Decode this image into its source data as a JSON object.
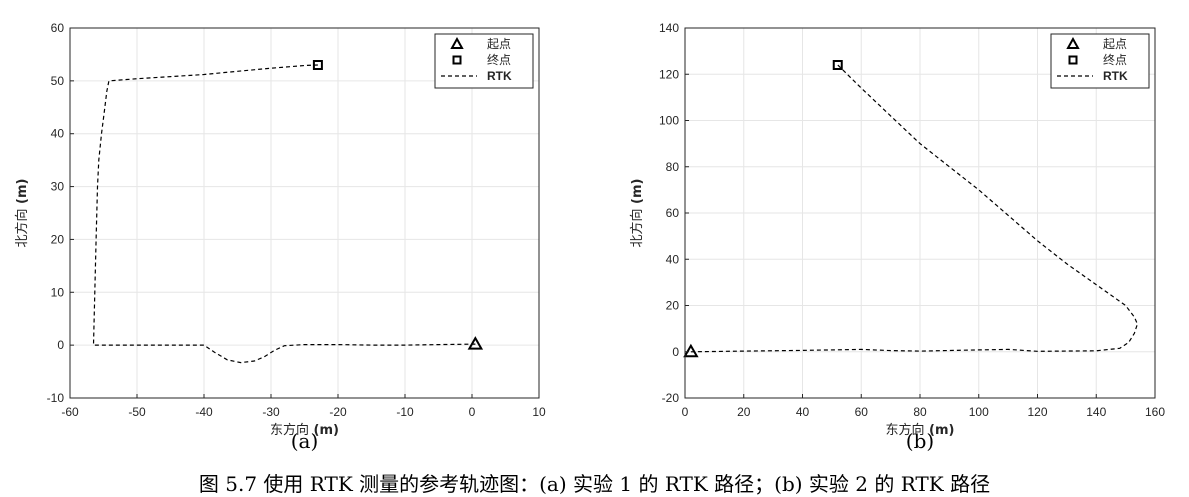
{
  "caption": "图 5.7 使用 RTK 测量的参考轨迹图：(a) 实验 1 的 RTK 路径；(b) 实验 2 的 RTK 路径",
  "colors": {
    "line": "#000000",
    "grid": "#e6e6e6",
    "axis": "#262626",
    "tick_text": "#262626"
  },
  "chart_data": [
    {
      "type": "line",
      "panel_label": "(a)",
      "title": "",
      "xlabel": "东方向 (m)",
      "ylabel": "北方向 (m)",
      "xlim": [
        -60,
        10
      ],
      "ylim": [
        -10,
        60
      ],
      "xticks": [
        -60,
        -50,
        -40,
        -30,
        -20,
        -10,
        0,
        10
      ],
      "yticks": [
        -10,
        0,
        10,
        20,
        30,
        40,
        50,
        60
      ],
      "grid": true,
      "legend_position": "top-right",
      "legend": [
        {
          "label": "起点",
          "marker": "triangle"
        },
        {
          "label": "终点",
          "marker": "square"
        },
        {
          "label": "RTK",
          "marker": "dashed-line"
        }
      ],
      "start_point": [
        0.5,
        0.2
      ],
      "end_point": [
        -23.0,
        53.0
      ],
      "series": [
        {
          "name": "RTK",
          "style": "dashed",
          "x": [
            0.5,
            -5,
            -10,
            -15,
            -20,
            -25,
            -28,
            -29.5,
            -31,
            -32.5,
            -34.5,
            -36.5,
            -38.5,
            -40,
            -45,
            -50,
            -54,
            -56.5,
            -56.3,
            -56.1,
            -55.9,
            -55.7,
            -55.3,
            -54.9,
            -54.7,
            -54.5,
            -54.2,
            -50,
            -45,
            -40,
            -35,
            -30,
            -25,
            -23.0
          ],
          "y": [
            0.2,
            0.1,
            0.0,
            0.0,
            0.1,
            0.1,
            -0.1,
            -1.0,
            -2.2,
            -3.0,
            -3.3,
            -2.8,
            -1.3,
            0.0,
            0.0,
            0.0,
            0.0,
            0.0,
            10,
            20,
            30,
            35,
            40,
            44,
            46,
            48,
            50,
            50.4,
            50.8,
            51.2,
            51.8,
            52.4,
            52.9,
            53.0
          ]
        }
      ]
    },
    {
      "type": "line",
      "panel_label": "(b)",
      "title": "",
      "xlabel": "东方向 (m)",
      "ylabel": "北方向 (m)",
      "xlim": [
        0,
        160
      ],
      "ylim": [
        -20,
        140
      ],
      "xticks": [
        0,
        20,
        40,
        60,
        80,
        100,
        120,
        140,
        160
      ],
      "yticks": [
        -20,
        0,
        20,
        40,
        60,
        80,
        100,
        120,
        140
      ],
      "grid": true,
      "legend_position": "top-right",
      "legend": [
        {
          "label": "起点",
          "marker": "triangle"
        },
        {
          "label": "终点",
          "marker": "square"
        },
        {
          "label": "RTK",
          "marker": "dashed-line"
        }
      ],
      "start_point": [
        2.0,
        0.0
      ],
      "end_point": [
        52.0,
        124.0
      ],
      "series": [
        {
          "name": "RTK",
          "style": "dashed",
          "x": [
            2,
            20,
            40,
            60,
            70,
            80,
            100,
            110,
            120,
            140,
            148,
            151,
            153,
            154,
            153,
            150,
            140,
            130,
            120,
            110,
            100,
            90,
            80,
            70,
            60,
            52
          ],
          "y": [
            0,
            0.3,
            0.6,
            1.0,
            0.5,
            0.3,
            0.8,
            1.0,
            0.2,
            0.4,
            1.5,
            4,
            8,
            12,
            15,
            20,
            29,
            38,
            48,
            59,
            70,
            80,
            90,
            102,
            114,
            124
          ]
        }
      ]
    }
  ]
}
